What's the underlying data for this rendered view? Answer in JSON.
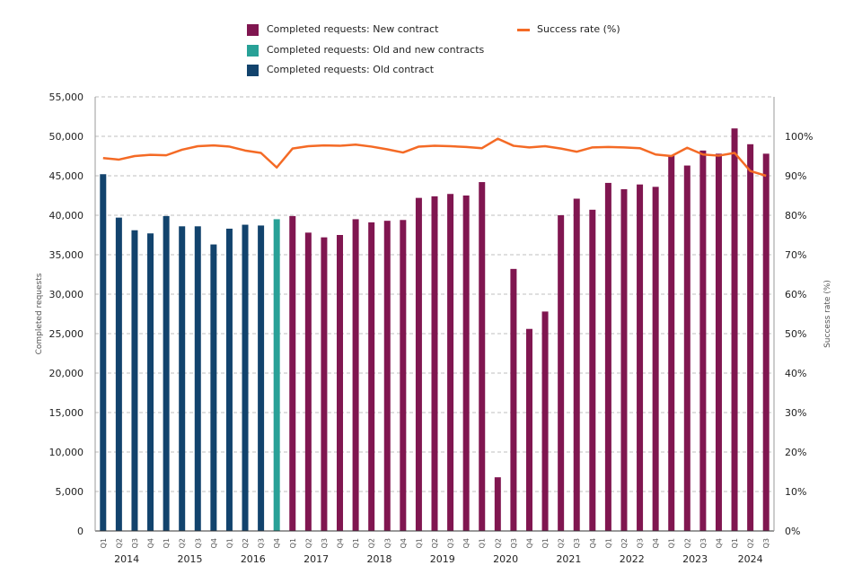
{
  "chart_data": {
    "type": "bar",
    "legend": {
      "new": "Completed requests: New contract",
      "oldnew": "Completed requests: Old and new contracts",
      "old": "Completed requests: Old contract",
      "rate": "Success rate (%)"
    },
    "ylabel": "Completed requests",
    "y2label": "Success rate (%)",
    "ylim": [
      0,
      55000
    ],
    "y2lim": [
      0,
      110
    ],
    "yticks": [
      "0",
      "5,000",
      "10,000",
      "15,000",
      "20,000",
      "25,000",
      "30,000",
      "35,000",
      "40,000",
      "45,000",
      "50,000",
      "55,000"
    ],
    "y2ticks": [
      "0%",
      "10%",
      "20%",
      "30%",
      "40%",
      "50%",
      "60%",
      "70%",
      "80%",
      "90%",
      "100%"
    ],
    "quarters": [
      "Q1",
      "Q2",
      "Q3",
      "Q4",
      "Q1",
      "Q2",
      "Q3",
      "Q4",
      "Q1",
      "Q2",
      "Q3",
      "Q4",
      "Q1",
      "Q2",
      "Q3",
      "Q4",
      "Q1",
      "Q2",
      "Q3",
      "Q4",
      "Q1",
      "Q2",
      "Q3",
      "Q4",
      "Q1",
      "Q2",
      "Q3",
      "Q4",
      "Q1",
      "Q2",
      "Q3",
      "Q4",
      "Q1",
      "Q2",
      "Q3",
      "Q4",
      "Q1",
      "Q2",
      "Q3",
      "Q4",
      "Q1",
      "Q2",
      "Q3"
    ],
    "years": [
      "2014",
      "2015",
      "2016",
      "2017",
      "2018",
      "2019",
      "2020",
      "2021",
      "2022",
      "2023",
      "2024"
    ],
    "contract": [
      "old",
      "old",
      "old",
      "old",
      "old",
      "old",
      "old",
      "old",
      "old",
      "old",
      "old",
      "oldnew",
      "new",
      "new",
      "new",
      "new",
      "new",
      "new",
      "new",
      "new",
      "new",
      "new",
      "new",
      "new",
      "new",
      "new",
      "new",
      "new",
      "new",
      "new",
      "new",
      "new",
      "new",
      "new",
      "new",
      "new",
      "new",
      "new",
      "new",
      "new",
      "new",
      "new",
      "new"
    ],
    "series": [
      {
        "name": "Completed requests",
        "values": [
          45200,
          39700,
          38100,
          37700,
          39900,
          38600,
          38600,
          36300,
          38300,
          38800,
          38700,
          39500,
          39900,
          37800,
          37200,
          37500,
          39500,
          39100,
          39300,
          39400,
          42200,
          42400,
          42700,
          42500,
          44200,
          6800,
          33200,
          25600,
          27800,
          40000,
          42100,
          40700,
          44100,
          43300,
          43900,
          43600,
          47600,
          46300,
          48200,
          47800,
          51000,
          49000,
          47800
        ]
      },
      {
        "name": "Success rate (%)",
        "values": [
          94.5,
          94.1,
          95.0,
          95.3,
          95.2,
          96.6,
          97.5,
          97.7,
          97.4,
          96.4,
          95.8,
          92.1,
          96.9,
          97.5,
          97.7,
          97.6,
          97.9,
          97.4,
          96.7,
          95.9,
          97.4,
          97.6,
          97.5,
          97.3,
          97.0,
          99.4,
          97.6,
          97.2,
          97.5,
          96.9,
          96.1,
          97.2,
          97.3,
          97.2,
          97.0,
          95.4,
          95.0,
          97.1,
          95.4,
          95.1,
          95.8,
          91.2,
          90.0
        ]
      }
    ],
    "colors": {
      "new": "#801650",
      "oldnew": "#28A197",
      "old": "#12436D",
      "rate": "#F46A25",
      "grid": "#BFBFBF",
      "axis": "#333333",
      "text": "#222222",
      "label": "#555555"
    },
    "grid": true,
    "legend_position": "top"
  }
}
